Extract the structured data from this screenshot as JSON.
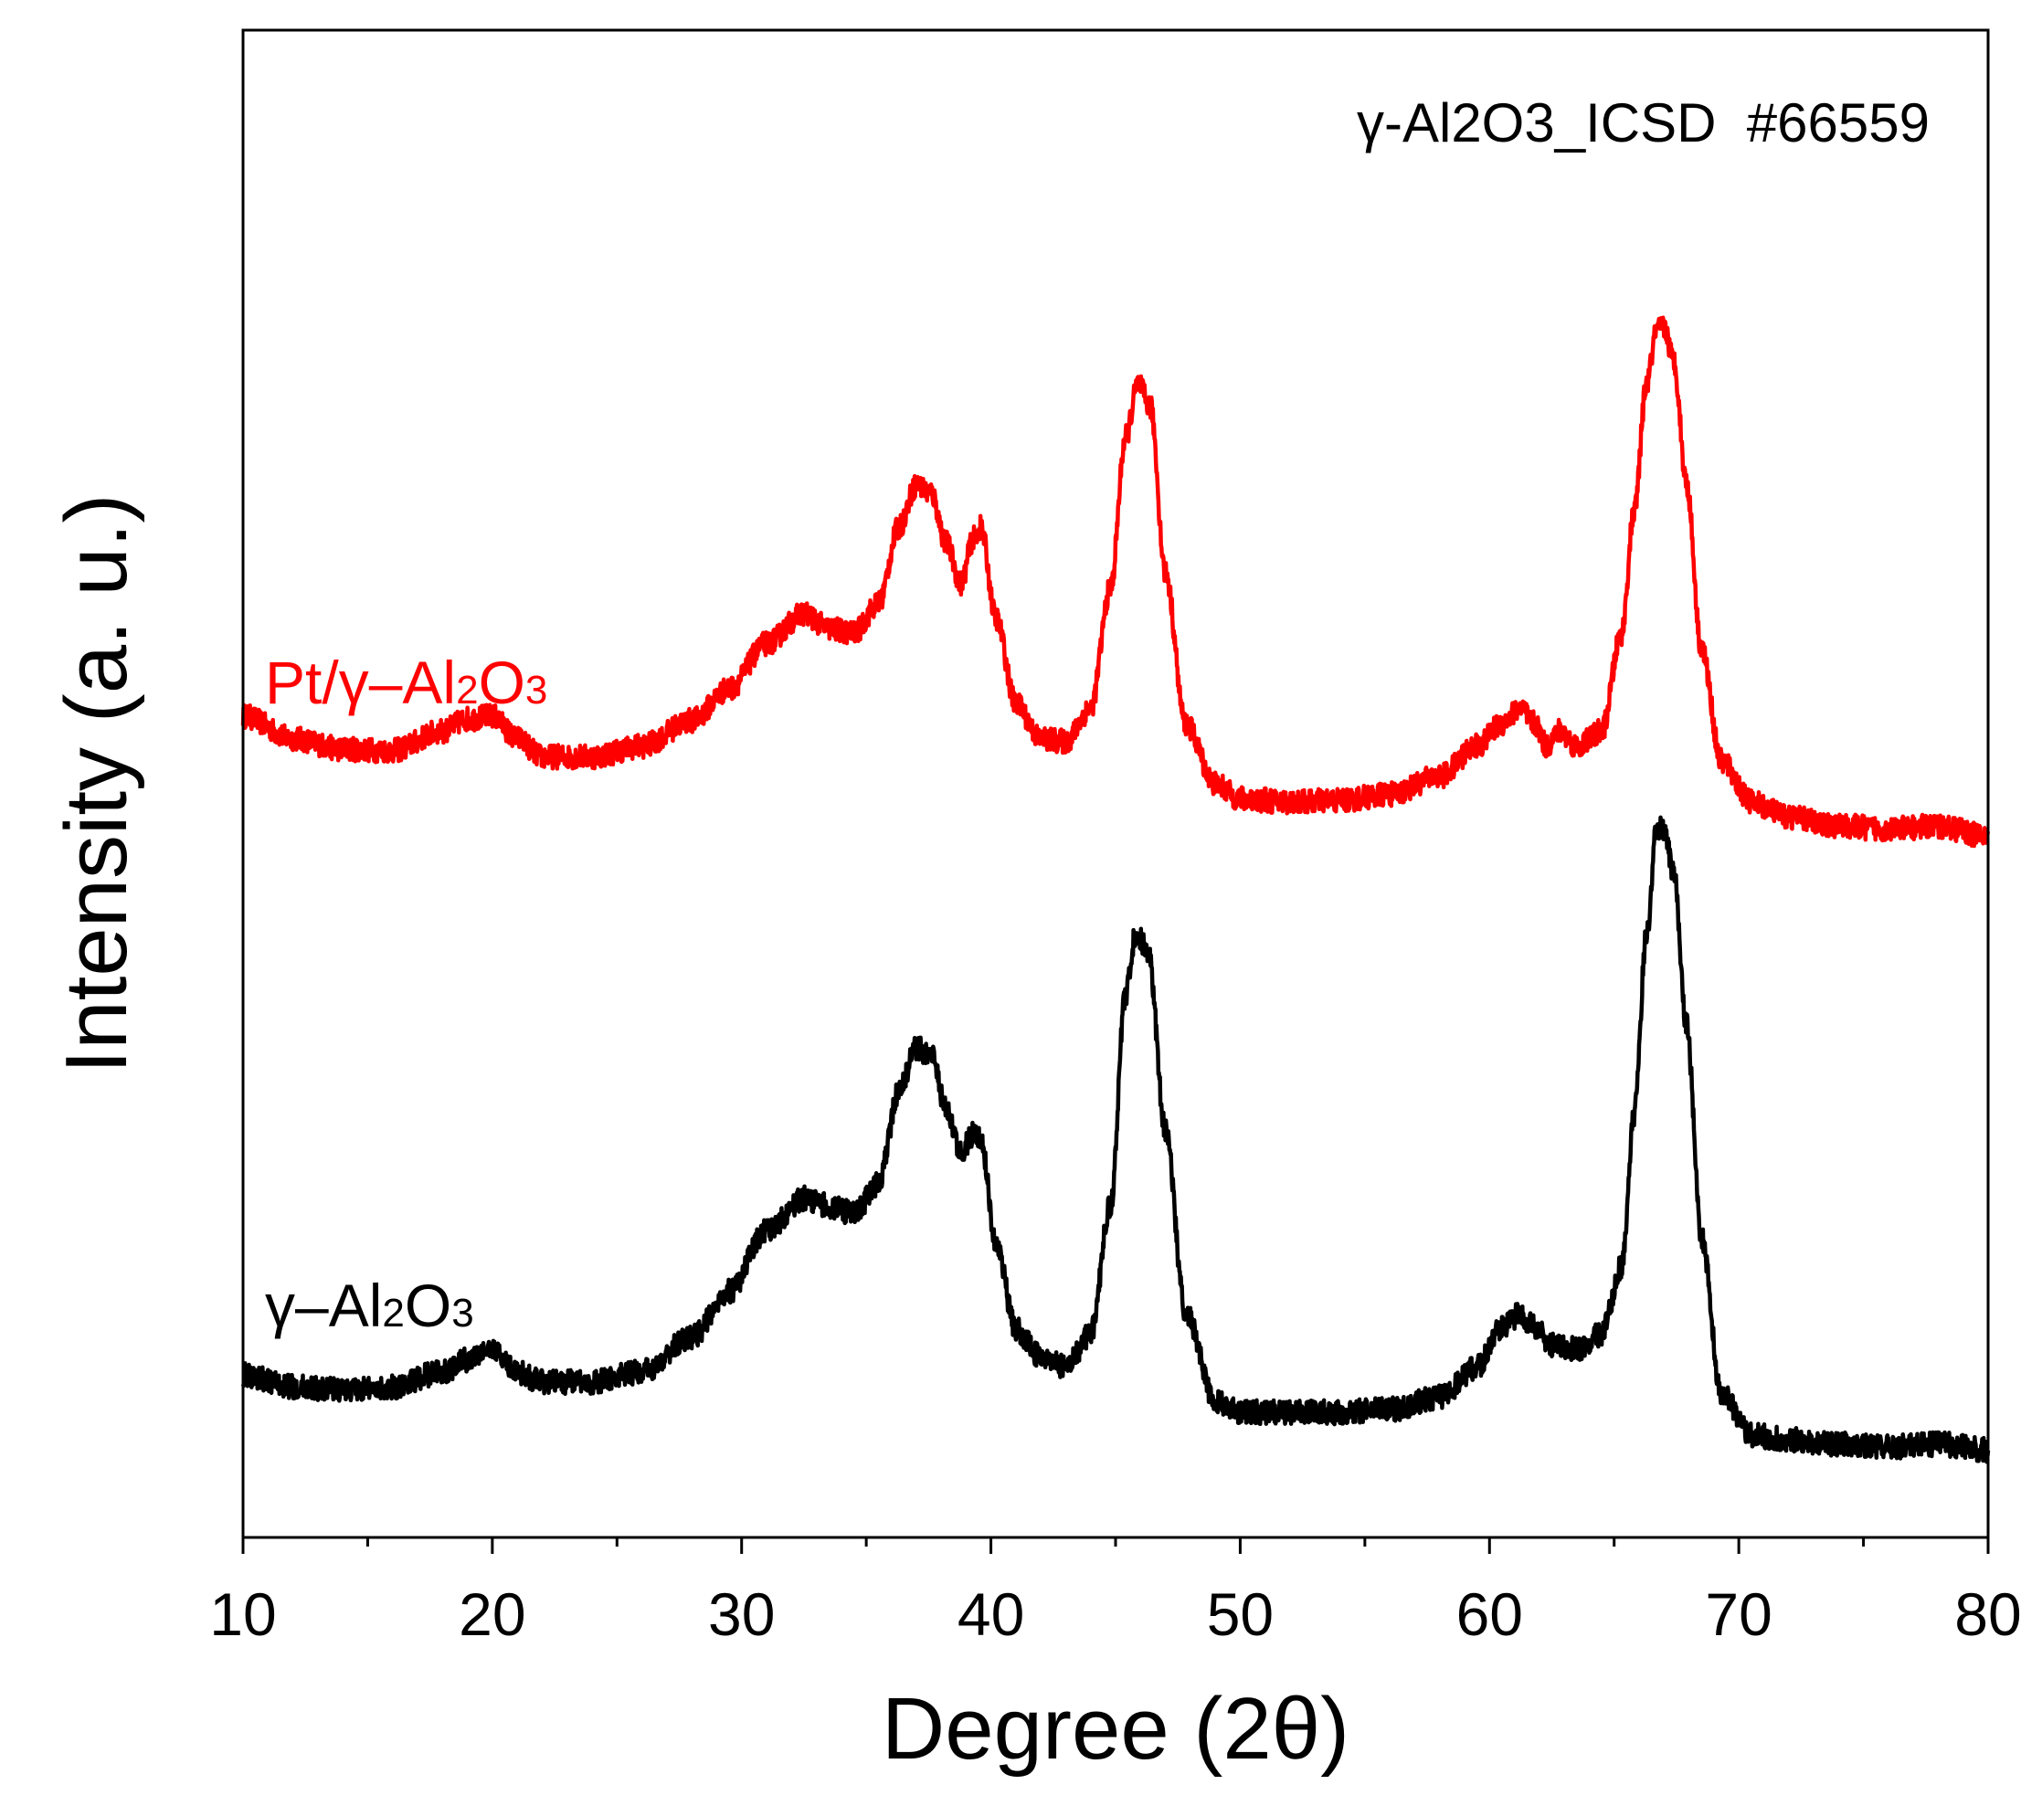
{
  "chart_data": {
    "type": "line",
    "title": "",
    "annotation": "γ-Al2O3_ICSD  #66559",
    "xlabel": "Degree (2θ)",
    "ylabel": "Intensity (a. u.)",
    "xlim": [
      10,
      80
    ],
    "xticks": [
      10,
      20,
      30,
      40,
      50,
      60,
      70,
      80
    ],
    "xtick_labels": [
      "10",
      "20",
      "30",
      "40",
      "50",
      "60",
      "70",
      "80"
    ],
    "ylim": [
      0,
      100
    ],
    "y_ticks_shown": false,
    "grid": false,
    "legend": "none (series labelled inline)",
    "series": [
      {
        "name": "Pt/γ–Al2O3",
        "label_main": "Pt/γ–Al",
        "label_sub1": "2",
        "label_mid": "O",
        "label_sub2": "3",
        "color": "#ff0000",
        "noise": 0.8,
        "points": [
          [
            10,
            54.5
          ],
          [
            12,
            53.0
          ],
          [
            14,
            52.3
          ],
          [
            16,
            52.2
          ],
          [
            18,
            53.5
          ],
          [
            19,
            54.3
          ],
          [
            20,
            54.5
          ],
          [
            21,
            53.0
          ],
          [
            22,
            51.8
          ],
          [
            24,
            51.8
          ],
          [
            26,
            52.5
          ],
          [
            28,
            54.2
          ],
          [
            29.5,
            56.3
          ],
          [
            31,
            59.3
          ],
          [
            32.5,
            61.3
          ],
          [
            33.5,
            60.3
          ],
          [
            34.5,
            60.0
          ],
          [
            35.5,
            62.0
          ],
          [
            36.3,
            67.0
          ],
          [
            37.0,
            69.8
          ],
          [
            37.6,
            69.3
          ],
          [
            38.2,
            66.0
          ],
          [
            38.8,
            63.3
          ],
          [
            39.3,
            66.3
          ],
          [
            39.6,
            67.0
          ],
          [
            40.2,
            61.0
          ],
          [
            41.0,
            55.3
          ],
          [
            42.0,
            53.0
          ],
          [
            43.0,
            52.8
          ],
          [
            44.0,
            55.0
          ],
          [
            44.8,
            63.0
          ],
          [
            45.4,
            73.0
          ],
          [
            45.9,
            76.5
          ],
          [
            46.4,
            75.0
          ],
          [
            47.0,
            64.0
          ],
          [
            47.8,
            54.0
          ],
          [
            49,
            50.0
          ],
          [
            50,
            49.0
          ],
          [
            52,
            48.8
          ],
          [
            54,
            48.9
          ],
          [
            56,
            49.3
          ],
          [
            58,
            50.5
          ],
          [
            59.5,
            52.5
          ],
          [
            60.5,
            54.0
          ],
          [
            61.2,
            55.0
          ],
          [
            61.8,
            54.0
          ],
          [
            62.3,
            52.5
          ],
          [
            62.8,
            53.5
          ],
          [
            63.5,
            52.5
          ],
          [
            64.5,
            53.5
          ],
          [
            65.3,
            60.0
          ],
          [
            65.8,
            68.0
          ],
          [
            66.3,
            76.5
          ],
          [
            66.7,
            80.0
          ],
          [
            67.0,
            80.3
          ],
          [
            67.4,
            78.0
          ],
          [
            67.9,
            70.0
          ],
          [
            68.5,
            59.0
          ],
          [
            69.3,
            51.5
          ],
          [
            70.5,
            48.8
          ],
          [
            72,
            47.8
          ],
          [
            74,
            47.2
          ],
          [
            76,
            47.0
          ],
          [
            78,
            47.2
          ],
          [
            80,
            46.5
          ]
        ]
      },
      {
        "name": "γ–Al2O3",
        "label_main": "γ–Al",
        "label_sub1": "2",
        "label_mid": "O",
        "label_sub2": "3",
        "color": "#000000",
        "noise": 0.8,
        "points": [
          [
            10,
            10.8
          ],
          [
            12,
            10.0
          ],
          [
            14,
            9.8
          ],
          [
            16,
            10.0
          ],
          [
            18,
            11.0
          ],
          [
            19,
            11.8
          ],
          [
            20,
            12.5
          ],
          [
            21,
            11.0
          ],
          [
            22,
            10.3
          ],
          [
            24,
            10.3
          ],
          [
            26,
            11.0
          ],
          [
            28,
            13.3
          ],
          [
            29.5,
            16.3
          ],
          [
            31,
            20.3
          ],
          [
            32.5,
            22.5
          ],
          [
            33.5,
            22.0
          ],
          [
            34.5,
            21.5
          ],
          [
            35.5,
            23.5
          ],
          [
            36.3,
            29.5
          ],
          [
            37.0,
            32.5
          ],
          [
            37.6,
            32.0
          ],
          [
            38.2,
            28.5
          ],
          [
            38.8,
            25.5
          ],
          [
            39.3,
            26.8
          ],
          [
            39.6,
            26.5
          ],
          [
            40.2,
            19.5
          ],
          [
            41.0,
            13.8
          ],
          [
            42.0,
            12.0
          ],
          [
            43.0,
            11.3
          ],
          [
            44.0,
            13.5
          ],
          [
            44.8,
            22.0
          ],
          [
            45.4,
            36.0
          ],
          [
            45.8,
            40.0
          ],
          [
            46.3,
            39.0
          ],
          [
            47.0,
            27.0
          ],
          [
            47.8,
            15.0
          ],
          [
            49,
            9.0
          ],
          [
            50,
            8.3
          ],
          [
            52,
            8.3
          ],
          [
            54,
            8.3
          ],
          [
            56,
            8.5
          ],
          [
            58,
            9.3
          ],
          [
            59.5,
            11.3
          ],
          [
            60.5,
            14.0
          ],
          [
            61.2,
            14.8
          ],
          [
            61.8,
            14.0
          ],
          [
            62.5,
            12.8
          ],
          [
            63.5,
            12.5
          ],
          [
            64.5,
            13.5
          ],
          [
            65.3,
            18.0
          ],
          [
            65.8,
            28.0
          ],
          [
            66.3,
            40.0
          ],
          [
            66.7,
            47.0
          ],
          [
            67.0,
            47.0
          ],
          [
            67.4,
            44.0
          ],
          [
            67.9,
            34.0
          ],
          [
            68.5,
            20.0
          ],
          [
            69.3,
            9.5
          ],
          [
            70.5,
            6.8
          ],
          [
            72,
            6.5
          ],
          [
            74,
            6.2
          ],
          [
            76,
            6.0
          ],
          [
            78,
            6.2
          ],
          [
            80,
            5.8
          ]
        ]
      }
    ]
  }
}
